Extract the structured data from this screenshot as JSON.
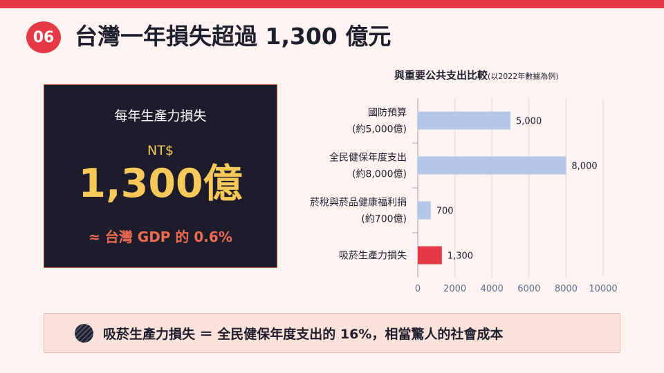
{
  "header": {
    "badge": "06",
    "title": "台灣一年損失超過 1,300 億元"
  },
  "stat_card": {
    "label": "每年生產力損失",
    "currency": "NT$",
    "amount": "1,300億",
    "note": "≈ 台灣 GDP 的 0.6%"
  },
  "chart_title": {
    "main": "與重要公共支出比較",
    "sub": "(以2022年數據為例)"
  },
  "chart_data": {
    "type": "bar",
    "orientation": "horizontal",
    "title": "與重要公共支出比較",
    "subtitle": "(以2022年數據為例)",
    "categories": [
      [
        "國防預算",
        "(約5,000億)"
      ],
      [
        "全民健保年度支出",
        "(約8,000億)"
      ],
      [
        "菸稅與菸品健康福利捐",
        "(約700億)"
      ],
      [
        "吸菸生產力損失"
      ]
    ],
    "values": [
      5000,
      8000,
      700,
      1300
    ],
    "value_labels": [
      "5,000",
      "8,000",
      "700",
      "1,300"
    ],
    "bar_colors": [
      "#b4c7e7",
      "#b4c7e7",
      "#b4c7e7",
      "#e63946"
    ],
    "xlim": [
      0,
      10000
    ],
    "xticks": [
      0,
      2000,
      4000,
      6000,
      8000,
      10000
    ],
    "grid": true,
    "xlabel": "",
    "ylabel": ""
  },
  "footer": {
    "message": "吸菸生產力損失 ＝ 全民健保年度支出的 16%，相當驚人的社會成本"
  },
  "colors": {
    "accent": "#e63946",
    "dark": "#1c1c2b",
    "gold": "#f7c95a",
    "coral": "#ee6a52",
    "bar": "#b4c7e7"
  }
}
